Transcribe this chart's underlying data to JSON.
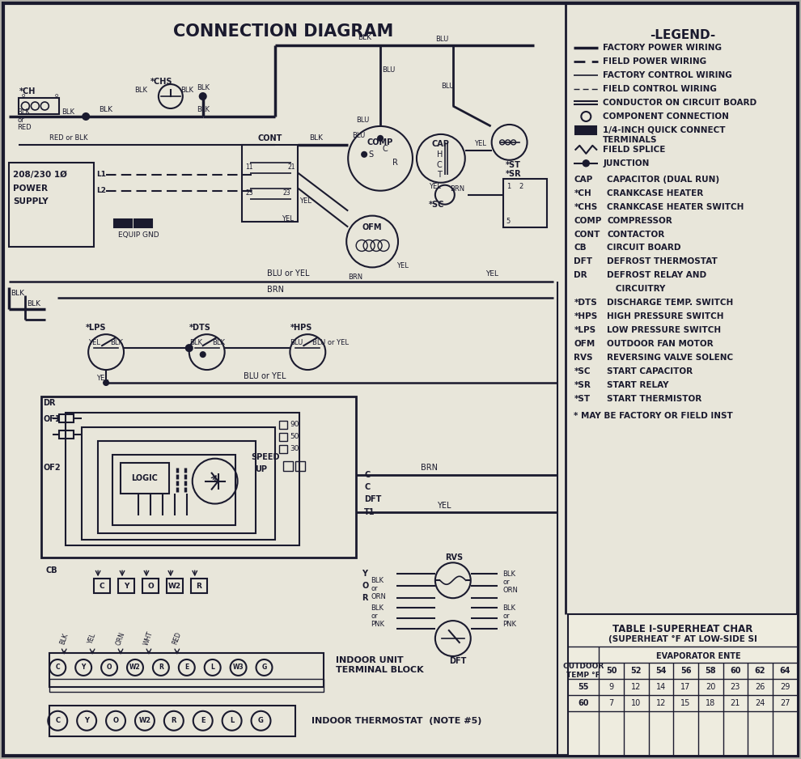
{
  "title": "CONNECTION DIAGRAM",
  "bg_outer": "#b0afa8",
  "bg_inner": "#e8e6da",
  "border_color": "#1a1a2e",
  "text_color": "#1a1a2e",
  "legend_title": "-LEGEND-",
  "legend_abbrevs": [
    [
      "CAP",
      "CAPACITOR (DUAL RUN)"
    ],
    [
      "*CH",
      "CRANKCASE HEATER"
    ],
    [
      "*CHS",
      "CRANKCASE HEATER SWITCH"
    ],
    [
      "COMP",
      "COMPRESSOR"
    ],
    [
      "CONT",
      "CONTACTOR"
    ],
    [
      "CB",
      "CIRCUIT BOARD"
    ],
    [
      "DFT",
      "DEFROST THERMOSTAT"
    ],
    [
      "DR",
      "DEFROST RELAY AND"
    ],
    [
      "",
      "   CIRCUITRY"
    ],
    [
      "*DTS",
      "DISCHARGE TEMP. SWITCH"
    ],
    [
      "*HPS",
      "HIGH PRESSURE SWITCH"
    ],
    [
      "*LPS",
      "LOW PRESSURE SWITCH"
    ],
    [
      "OFM",
      "OUTDOOR FAN MOTOR"
    ],
    [
      "RVS",
      "REVERSING VALVE SOLENC"
    ],
    [
      "*SC",
      "START CAPACITOR"
    ],
    [
      "*SR",
      "START RELAY"
    ],
    [
      "*ST",
      "START THERMISTOR"
    ]
  ],
  "note": "* MAY BE FACTORY OR FIELD INST",
  "table_title": "TABLE I-SUPERHEAT CHAR",
  "table_subtitle": "(SUPERHEAT °F AT LOW-SIDE SI",
  "col_labels": [
    "50",
    "52",
    "54",
    "56",
    "58",
    "60",
    "62",
    "64"
  ],
  "row_labels": [
    "55",
    "60"
  ],
  "table_data": [
    [
      "9",
      "12",
      "14",
      "17",
      "20",
      "23",
      "26",
      "29"
    ],
    [
      "7",
      "10",
      "12",
      "15",
      "18",
      "21",
      "24",
      "27"
    ]
  ],
  "power_supply": "208/230 1Ø\nPOWER\nSUPPLY",
  "equip_gnd": "EQUIP GND",
  "indoor_unit": "INDOOR UNIT\nTERMINAL BLOCK",
  "indoor_thermo": "INDOOR THERMOSTAT  (NOTE #5)"
}
